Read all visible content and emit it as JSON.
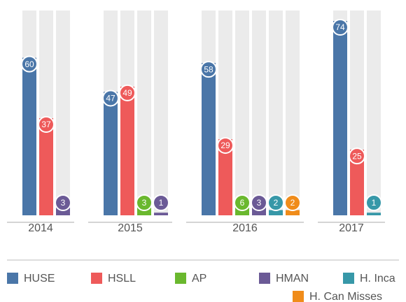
{
  "chart_data": {
    "type": "bar",
    "categories": [
      "2014",
      "2015",
      "2016",
      "2017"
    ],
    "series": [
      {
        "name": "HUSE",
        "color": "#4a76a8",
        "values": [
          60,
          47,
          58,
          74
        ]
      },
      {
        "name": "HSLL",
        "color": "#ee5a5a",
        "values": [
          37,
          49,
          29,
          25
        ]
      },
      {
        "name": "AP",
        "color": "#6ab82e",
        "values": [
          null,
          3,
          6,
          null
        ]
      },
      {
        "name": "HMAN",
        "color": "#6b5a96",
        "values": [
          3,
          1,
          3,
          null
        ]
      },
      {
        "name": "H. Inca",
        "color": "#3798a8",
        "values": [
          null,
          null,
          2,
          1
        ]
      },
      {
        "name": "H. Can Misses",
        "color": "#f08c1a",
        "values": [
          null,
          null,
          2,
          null
        ]
      }
    ],
    "ylim": [
      0,
      78
    ]
  }
}
